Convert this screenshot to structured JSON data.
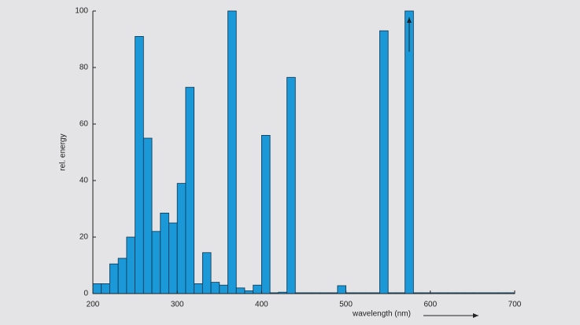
{
  "chart_data": {
    "type": "histogram",
    "ylabel": "rel. energy",
    "xlabel": "wavelength (nm)",
    "bins": [
      200,
      210,
      220,
      230,
      240,
      250,
      260,
      270,
      280,
      290,
      300,
      310,
      320,
      330,
      340,
      350,
      360,
      370,
      380,
      390,
      400,
      410,
      420,
      430,
      440,
      450,
      460,
      470,
      480,
      490,
      500,
      510,
      520,
      530,
      540,
      550,
      560,
      570,
      580,
      590,
      600,
      610,
      620,
      630,
      640,
      650,
      660,
      670,
      680,
      690,
      700
    ],
    "values": [
      3.5,
      3.5,
      10.5,
      12.5,
      20,
      91,
      55,
      22,
      28.5,
      25,
      39,
      73,
      3.5,
      14.5,
      4,
      3,
      100,
      2,
      1,
      3,
      56,
      0.3,
      0.5,
      76.5,
      0.3,
      0.3,
      0.3,
      0.3,
      0.3,
      2.8,
      0.3,
      0.3,
      0.3,
      0.3,
      93,
      0.3,
      0.3,
      100,
      0.3,
      0.3,
      0.3,
      0.3,
      0.3,
      0.3,
      0.3,
      0.3,
      0.3,
      0.3,
      0.3,
      0.3
    ],
    "color": "#1b98d8",
    "xlim": [
      200,
      700
    ],
    "ylim": [
      0,
      100
    ],
    "xticks": [
      200,
      300,
      400,
      500,
      600,
      700
    ],
    "yticks": [
      0,
      20,
      40,
      60,
      80,
      100
    ]
  }
}
